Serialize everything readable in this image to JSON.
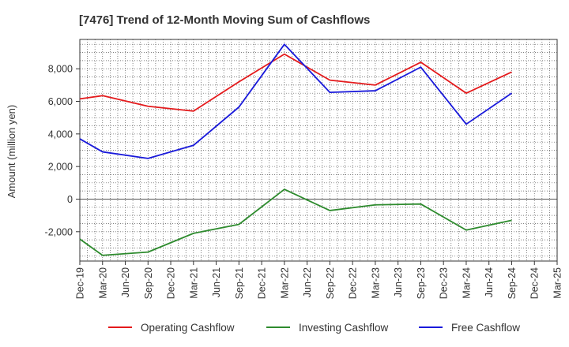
{
  "chart_data": {
    "type": "line",
    "title": "[7476]  Trend of 12-Month Moving Sum of Cashflows",
    "xlabel": "",
    "ylabel": "Amount (million yen)",
    "categories": [
      "Dec-19",
      "Mar-20",
      "Jun-20",
      "Sep-20",
      "Dec-20",
      "Mar-21",
      "Jun-21",
      "Sep-21",
      "Dec-21",
      "Mar-22",
      "Jun-22",
      "Sep-22",
      "Dec-22",
      "Mar-23",
      "Jun-23",
      "Sep-23",
      "Dec-23",
      "Mar-24",
      "Jun-24",
      "Sep-24",
      "Dec-24",
      "Mar-25"
    ],
    "ylim": [
      -3800,
      9800
    ],
    "yticks": [
      -2000,
      0,
      2000,
      4000,
      6000,
      8000
    ],
    "ytick_labels": [
      "-2,000",
      "0",
      "2,000",
      "4,000",
      "6,000",
      "8,000"
    ],
    "grid": true,
    "legend_position": "bottom",
    "series": [
      {
        "name": "Operating Cashflow",
        "color": "#e41a1c",
        "points": [
          [
            0,
            6150
          ],
          [
            1,
            6350
          ],
          [
            3,
            5700
          ],
          [
            5,
            5400
          ],
          [
            7,
            7200
          ],
          [
            9,
            8900
          ],
          [
            11,
            7300
          ],
          [
            13,
            7000
          ],
          [
            15,
            8400
          ],
          [
            17,
            6500
          ],
          [
            19,
            7800
          ]
        ]
      },
      {
        "name": "Investing Cashflow",
        "color": "#2e8b2e",
        "points": [
          [
            0,
            -2450
          ],
          [
            1,
            -3450
          ],
          [
            3,
            -3250
          ],
          [
            5,
            -2100
          ],
          [
            7,
            -1550
          ],
          [
            9,
            600
          ],
          [
            11,
            -700
          ],
          [
            13,
            -350
          ],
          [
            15,
            -300
          ],
          [
            17,
            -1900
          ],
          [
            19,
            -1300
          ]
        ]
      },
      {
        "name": "Free Cashflow",
        "color": "#1a1adb",
        "points": [
          [
            0,
            3700
          ],
          [
            1,
            2900
          ],
          [
            3,
            2500
          ],
          [
            5,
            3300
          ],
          [
            7,
            5650
          ],
          [
            9,
            9500
          ],
          [
            11,
            6550
          ],
          [
            13,
            6650
          ],
          [
            15,
            8100
          ],
          [
            17,
            4600
          ],
          [
            19,
            6500
          ]
        ]
      }
    ]
  }
}
